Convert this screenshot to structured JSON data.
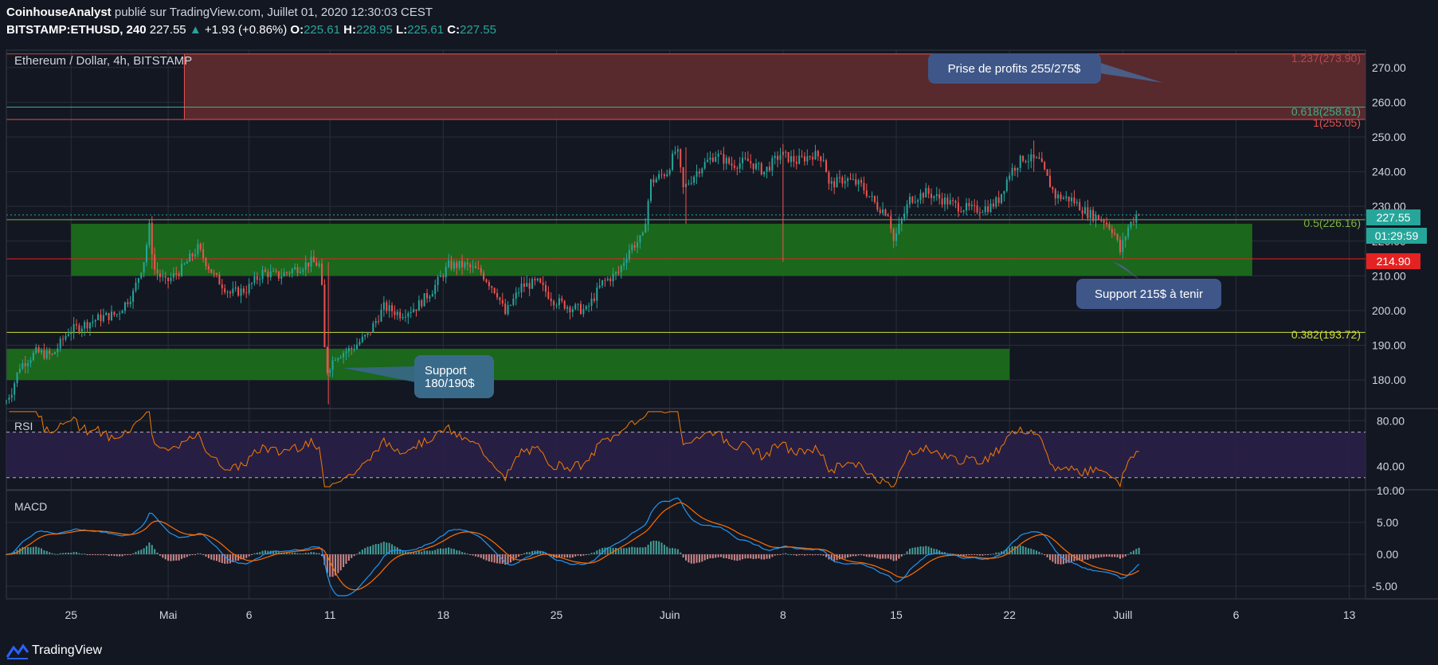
{
  "header": {
    "author": "CoinhouseAnalyst",
    "published": "publié sur TradingView.com, Juillet 01, 2020 12:30:03 CEST",
    "symbol": "BITSTAMP:ETHUSD, 240",
    "last": "227.55",
    "change": "+1.93 (+0.86%)",
    "o_label": "O:",
    "o": "225.61",
    "h_label": "H:",
    "h": "228.95",
    "l_label": "L:",
    "l": "225.61",
    "c_label": "C:",
    "c": "227.55"
  },
  "main_pane": {
    "legend": "Ethereum / Dollar, 4h, BITSTAMP",
    "price_tag": "227.55",
    "countdown": "01:29:59",
    "level_tag": "214.90"
  },
  "annotations": {
    "profit": "Prise de profits 255/275$",
    "support_215": "Support 215$ à tenir",
    "support_180_line1": "Support",
    "support_180_line2": "180/190$"
  },
  "fib_labels": {
    "f1237": "1.237(273.90)",
    "f0618": "0.618(258.61)",
    "f1": "1(255.05)",
    "f05": "0.5(226.16)",
    "f0382": "0.382(193.72)"
  },
  "rsi_label": "RSI",
  "macd_label": "MACD",
  "footer": {
    "brand": "TradingView"
  },
  "colors": {
    "background": "#131722",
    "up": "#26a69a",
    "down": "#ef5350",
    "rsi_line": "#f57c00",
    "macd_line": "#2196f3",
    "signal_line": "#ff6d00",
    "resistance_zone": "#5c2a2e",
    "support_zone": "#1b6b1b"
  },
  "chart_data": [
    {
      "type": "candlestick",
      "symbol": "BITSTAMP:ETHUSD",
      "timeframe": "4h",
      "y_ticks": [
        180,
        190,
        200,
        210,
        220,
        230,
        240,
        250,
        260,
        270
      ],
      "y_tick_labels": [
        "180.00",
        "190.00",
        "200.00",
        "210.00",
        "220.00",
        "230.00",
        "240.00",
        "250.00",
        "260.00",
        "270.00"
      ],
      "ylim": [
        172,
        275
      ],
      "x_tick_labels": [
        "25",
        "Mai",
        "6",
        "11",
        "18",
        "25",
        "Juin",
        "8",
        "15",
        "22",
        "Juill",
        "6",
        "13"
      ],
      "x_tick_days": [
        4,
        10,
        15,
        20,
        27,
        34,
        41,
        48,
        55,
        62,
        69,
        76,
        83
      ],
      "x_range_days": [
        0,
        84
      ],
      "last_day": 70,
      "price_path": [
        [
          0,
          173
        ],
        [
          0.5,
          177
        ],
        [
          1,
          184
        ],
        [
          2,
          188
        ],
        [
          3,
          187
        ],
        [
          4,
          194
        ],
        [
          5,
          196
        ],
        [
          6,
          198
        ],
        [
          7,
          199
        ],
        [
          8,
          205
        ],
        [
          8.7,
          215
        ],
        [
          9,
          224
        ],
        [
          9.3,
          212
        ],
        [
          10,
          208
        ],
        [
          11,
          212
        ],
        [
          12,
          218
        ],
        [
          13,
          210
        ],
        [
          14,
          205
        ],
        [
          15,
          206
        ],
        [
          16,
          211
        ],
        [
          17,
          210
        ],
        [
          18,
          212
        ],
        [
          19,
          214
        ],
        [
          19.6,
          213
        ],
        [
          19.9,
          182
        ],
        [
          20.5,
          187
        ],
        [
          21.5,
          189
        ],
        [
          22.5,
          193
        ],
        [
          23.5,
          201
        ],
        [
          24.5,
          199
        ],
        [
          25.5,
          201
        ],
        [
          26.5,
          206
        ],
        [
          27.5,
          213
        ],
        [
          28.5,
          213
        ],
        [
          29.5,
          211
        ],
        [
          30.5,
          205
        ],
        [
          31,
          199
        ],
        [
          32,
          207
        ],
        [
          33,
          208
        ],
        [
          34,
          203
        ],
        [
          35,
          201
        ],
        [
          36,
          200
        ],
        [
          37,
          208
        ],
        [
          38,
          211
        ],
        [
          38.7,
          218
        ],
        [
          39.5,
          221
        ],
        [
          40,
          237
        ],
        [
          41,
          240
        ],
        [
          41.6,
          247
        ],
        [
          42,
          235
        ],
        [
          43,
          241
        ],
        [
          44,
          245
        ],
        [
          45,
          242
        ],
        [
          46,
          243
        ],
        [
          47,
          240
        ],
        [
          48,
          245
        ],
        [
          49,
          243
        ],
        [
          50,
          245
        ],
        [
          50.7,
          244
        ],
        [
          51,
          236
        ],
        [
          52,
          238
        ],
        [
          53,
          236
        ],
        [
          54,
          230
        ],
        [
          54.7,
          228
        ],
        [
          55,
          220
        ],
        [
          56,
          232
        ],
        [
          57,
          234
        ],
        [
          58,
          232
        ],
        [
          59,
          230
        ],
        [
          60,
          229
        ],
        [
          61,
          230
        ],
        [
          61.5,
          232
        ],
        [
          62.2,
          240
        ],
        [
          63,
          244
        ],
        [
          64,
          243
        ],
        [
          65,
          233
        ],
        [
          66,
          232
        ],
        [
          67,
          228
        ],
        [
          68,
          226
        ],
        [
          68.6,
          223
        ],
        [
          69,
          217
        ],
        [
          69.5,
          224
        ],
        [
          70,
          227.55
        ]
      ],
      "resistance_zone": [
        255.05,
        273.9
      ],
      "support_zone_upper": [
        210,
        225
      ],
      "support_zone_lower": [
        180,
        189
      ],
      "fib_levels": [
        {
          "ratio": "1.237",
          "price": 273.9
        },
        {
          "ratio": "0.618",
          "price": 258.61
        },
        {
          "ratio": "1",
          "price": 255.05
        },
        {
          "ratio": "0.5",
          "price": 226.16
        },
        {
          "ratio": "0.382",
          "price": 193.72
        }
      ],
      "horizontal_level": 214.9
    },
    {
      "type": "line",
      "title": "RSI",
      "y_ticks": [
        40,
        80
      ],
      "y_tick_labels": [
        "40.00",
        "80.00"
      ],
      "bands": [
        30,
        70
      ],
      "ylim": [
        20,
        90
      ]
    },
    {
      "type": "line+bar",
      "title": "MACD",
      "y_ticks": [
        -5,
        0,
        5,
        10
      ],
      "y_tick_labels": [
        "-5.00",
        "0.00",
        "5.00",
        "10.00"
      ],
      "ylim": [
        -7,
        10
      ],
      "series": [
        {
          "name": "MACD",
          "values": []
        },
        {
          "name": "Signal",
          "values": []
        },
        {
          "name": "Histogram",
          "values": []
        }
      ]
    }
  ]
}
